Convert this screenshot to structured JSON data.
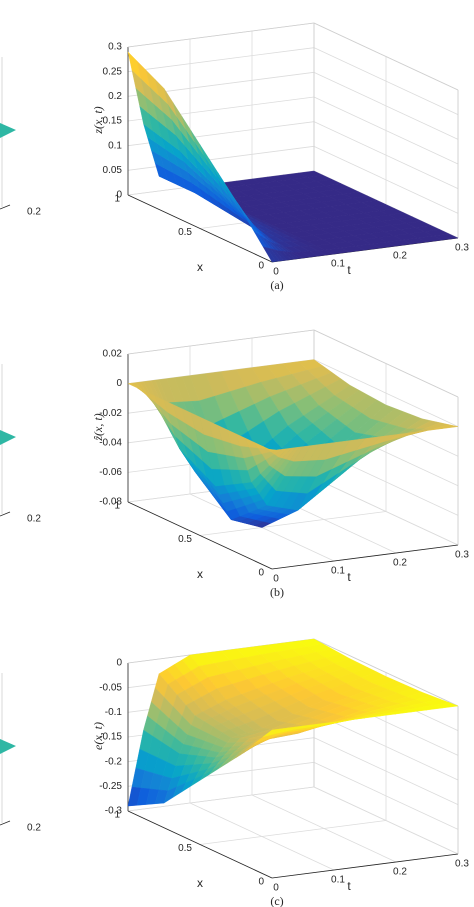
{
  "chart_data": [
    {
      "type": "surface",
      "caption": "(a)",
      "xlabel": "x",
      "tlabel": "t",
      "zlabel": "z(x, t)",
      "colormap": "parula",
      "grid": true,
      "x": [
        0,
        0.25,
        0.5,
        0.75,
        1
      ],
      "t": [
        0,
        0.025,
        0.05,
        0.1,
        0.2,
        0.3
      ],
      "z": [
        [
          0,
          0,
          0,
          0,
          0,
          0
        ],
        [
          0.09,
          0.04,
          0.01,
          0,
          0,
          0
        ],
        [
          0.17,
          0.08,
          0.02,
          0,
          0,
          0
        ],
        [
          0.25,
          0.12,
          0.03,
          0,
          0,
          0
        ],
        [
          0.29,
          0.14,
          0.03,
          0,
          0,
          0
        ]
      ],
      "xlim": [
        0,
        1
      ],
      "tlim": [
        0,
        0.3
      ],
      "zlim": [
        0,
        0.3
      ],
      "xticks": [
        0,
        0.5,
        1
      ],
      "tticks": [
        0,
        0.1,
        0.2,
        0.3
      ],
      "zticks": [
        0,
        0.05,
        0.1,
        0.15,
        0.2,
        0.25,
        0.3
      ]
    },
    {
      "type": "surface",
      "caption": "(b)",
      "xlabel": "x",
      "tlabel": "t",
      "zlabel": "ẑ(x, t)",
      "colormap": "parula",
      "grid": true,
      "x": [
        0,
        0.25,
        0.5,
        0.75,
        1
      ],
      "t": [
        0,
        0.025,
        0.05,
        0.1,
        0.2,
        0.3
      ],
      "z": [
        [
          0,
          0,
          0,
          0,
          0,
          0
        ],
        [
          0,
          -0.034,
          -0.051,
          -0.057,
          -0.028,
          -0.006
        ],
        [
          0,
          -0.048,
          -0.072,
          -0.08,
          -0.04,
          -0.008
        ],
        [
          0,
          -0.034,
          -0.051,
          -0.057,
          -0.028,
          -0.006
        ],
        [
          0,
          0,
          0,
          0,
          0,
          0
        ]
      ],
      "xlim": [
        0,
        1
      ],
      "tlim": [
        0,
        0.3
      ],
      "zlim": [
        -0.08,
        0.02
      ],
      "xticks": [
        0,
        0.5,
        1
      ],
      "tticks": [
        0,
        0.1,
        0.2,
        0.3
      ],
      "zticks": [
        -0.08,
        -0.06,
        -0.04,
        -0.02,
        0,
        0.02
      ]
    },
    {
      "type": "surface",
      "caption": "(c)",
      "xlabel": "x",
      "tlabel": "t",
      "zlabel": "e(x, t)",
      "colormap": "parula",
      "grid": true,
      "x": [
        0,
        0.25,
        0.5,
        0.75,
        1
      ],
      "t": [
        0,
        0.025,
        0.05,
        0.1,
        0.2,
        0.3
      ],
      "z": [
        [
          0,
          0,
          0,
          0,
          0,
          0
        ],
        [
          -0.09,
          -0.074,
          -0.061,
          -0.057,
          -0.028,
          -0.006
        ],
        [
          -0.17,
          -0.128,
          -0.092,
          -0.08,
          -0.04,
          -0.008
        ],
        [
          -0.25,
          -0.154,
          -0.081,
          -0.057,
          -0.028,
          -0.006
        ],
        [
          -0.29,
          -0.14,
          -0.03,
          0,
          0,
          0
        ]
      ],
      "xlim": [
        0,
        1
      ],
      "tlim": [
        0,
        0.3
      ],
      "zlim": [
        -0.3,
        0
      ],
      "xticks": [
        0,
        0.5,
        1
      ],
      "tticks": [
        0,
        0.1,
        0.2,
        0.3
      ],
      "zticks": [
        -0.3,
        -0.25,
        -0.2,
        -0.15,
        -0.1,
        -0.05,
        0
      ]
    }
  ],
  "cropped_left_panels": [
    {
      "xtick": 0.2
    },
    {
      "xtick": 0.2
    },
    {
      "xtick": 0.2
    }
  ]
}
